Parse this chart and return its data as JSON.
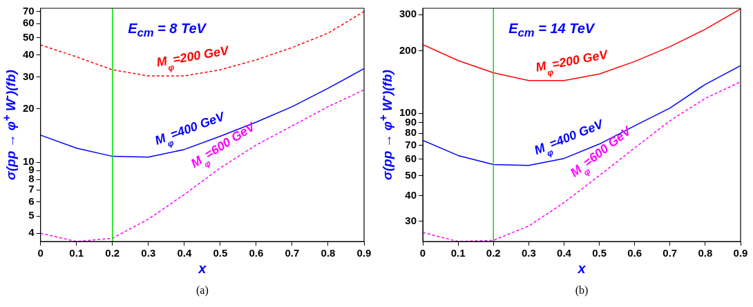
{
  "chart_data": [
    {
      "type": "line",
      "xlabel": "x",
      "ylabel": "σ(pp → φ$^{+}$ W$^{-}$)(fb)",
      "log": "y",
      "grid": false,
      "legend": false,
      "annotations": [
        "E$_{cm}$ = 8 TeV",
        "(a)"
      ],
      "x": [
        0,
        0.1,
        0.2,
        0.3,
        0.4,
        0.5,
        0.6,
        0.7,
        0.8,
        0.9
      ],
      "xlim": [
        0,
        0.9
      ],
      "xticks": [
        0,
        0.1,
        0.2,
        0.3,
        0.4,
        0.5,
        0.6,
        0.7,
        0.8,
        0.9
      ],
      "ylim": [
        3.6,
        73
      ],
      "yticks": [
        4,
        5,
        6,
        7,
        8,
        9,
        10,
        20,
        30,
        40,
        50,
        60,
        70
      ],
      "ref_lines": [
        {
          "axis": "x",
          "value": 0.2,
          "color": "#00e000"
        }
      ],
      "series": [
        {
          "name": "M$_{φ}$=200 GeV",
          "color": "#ff0000",
          "line_style": "dashed",
          "values": [
            45.5,
            39,
            33,
            30.5,
            30.5,
            33,
            37.5,
            44,
            53,
            70
          ]
        },
        {
          "name": "M$_{φ}$=400 GeV",
          "color": "#0000ff",
          "line_style": "solid",
          "values": [
            14.2,
            12.0,
            10.8,
            10.7,
            11.8,
            14,
            16.8,
            20.5,
            26,
            33.5
          ]
        },
        {
          "name": "M$_{φ}$=600 GeV",
          "color": "#ff00ff",
          "line_style": "dashed",
          "values": [
            4.0,
            3.6,
            3.75,
            4.8,
            6.6,
            9.3,
            12.5,
            16,
            20.5,
            25.5
          ]
        }
      ]
    },
    {
      "type": "line",
      "xlabel": "x",
      "ylabel": "σ(pp → φ$^{+}$ W$^{-}$)(fb)",
      "log": "y",
      "grid": false,
      "legend": false,
      "annotations": [
        "E$_{cm}$ = 14 TeV",
        "(b)"
      ],
      "x": [
        0,
        0.1,
        0.2,
        0.3,
        0.4,
        0.5,
        0.6,
        0.7,
        0.8,
        0.9
      ],
      "xlim": [
        0,
        0.9
      ],
      "xticks": [
        0,
        0.1,
        0.2,
        0.3,
        0.4,
        0.5,
        0.6,
        0.7,
        0.8,
        0.9
      ],
      "ylim": [
        24,
        322
      ],
      "yticks": [
        30,
        40,
        50,
        60,
        70,
        80,
        90,
        100,
        200,
        300
      ],
      "ref_lines": [
        {
          "axis": "x",
          "value": 0.2,
          "color": "#00e000"
        }
      ],
      "series": [
        {
          "name": "M$_{φ}$=200 GeV",
          "color": "#ff0000",
          "line_style": "solid",
          "values": [
            215,
            180,
            157,
            144,
            144,
            155,
            178,
            210,
            255,
            320
          ]
        },
        {
          "name": "M$_{φ}$=400 GeV",
          "color": "#0000ff",
          "line_style": "solid",
          "values": [
            74,
            62.5,
            56.5,
            56,
            60.5,
            71,
            87,
            106,
            138,
            170
          ]
        },
        {
          "name": "M$_{φ}$=600 GeV",
          "color": "#ff00ff",
          "line_style": "dashed",
          "values": [
            26.5,
            24,
            24.3,
            28.5,
            37,
            50,
            68,
            92,
            118,
            142
          ]
        }
      ]
    }
  ]
}
